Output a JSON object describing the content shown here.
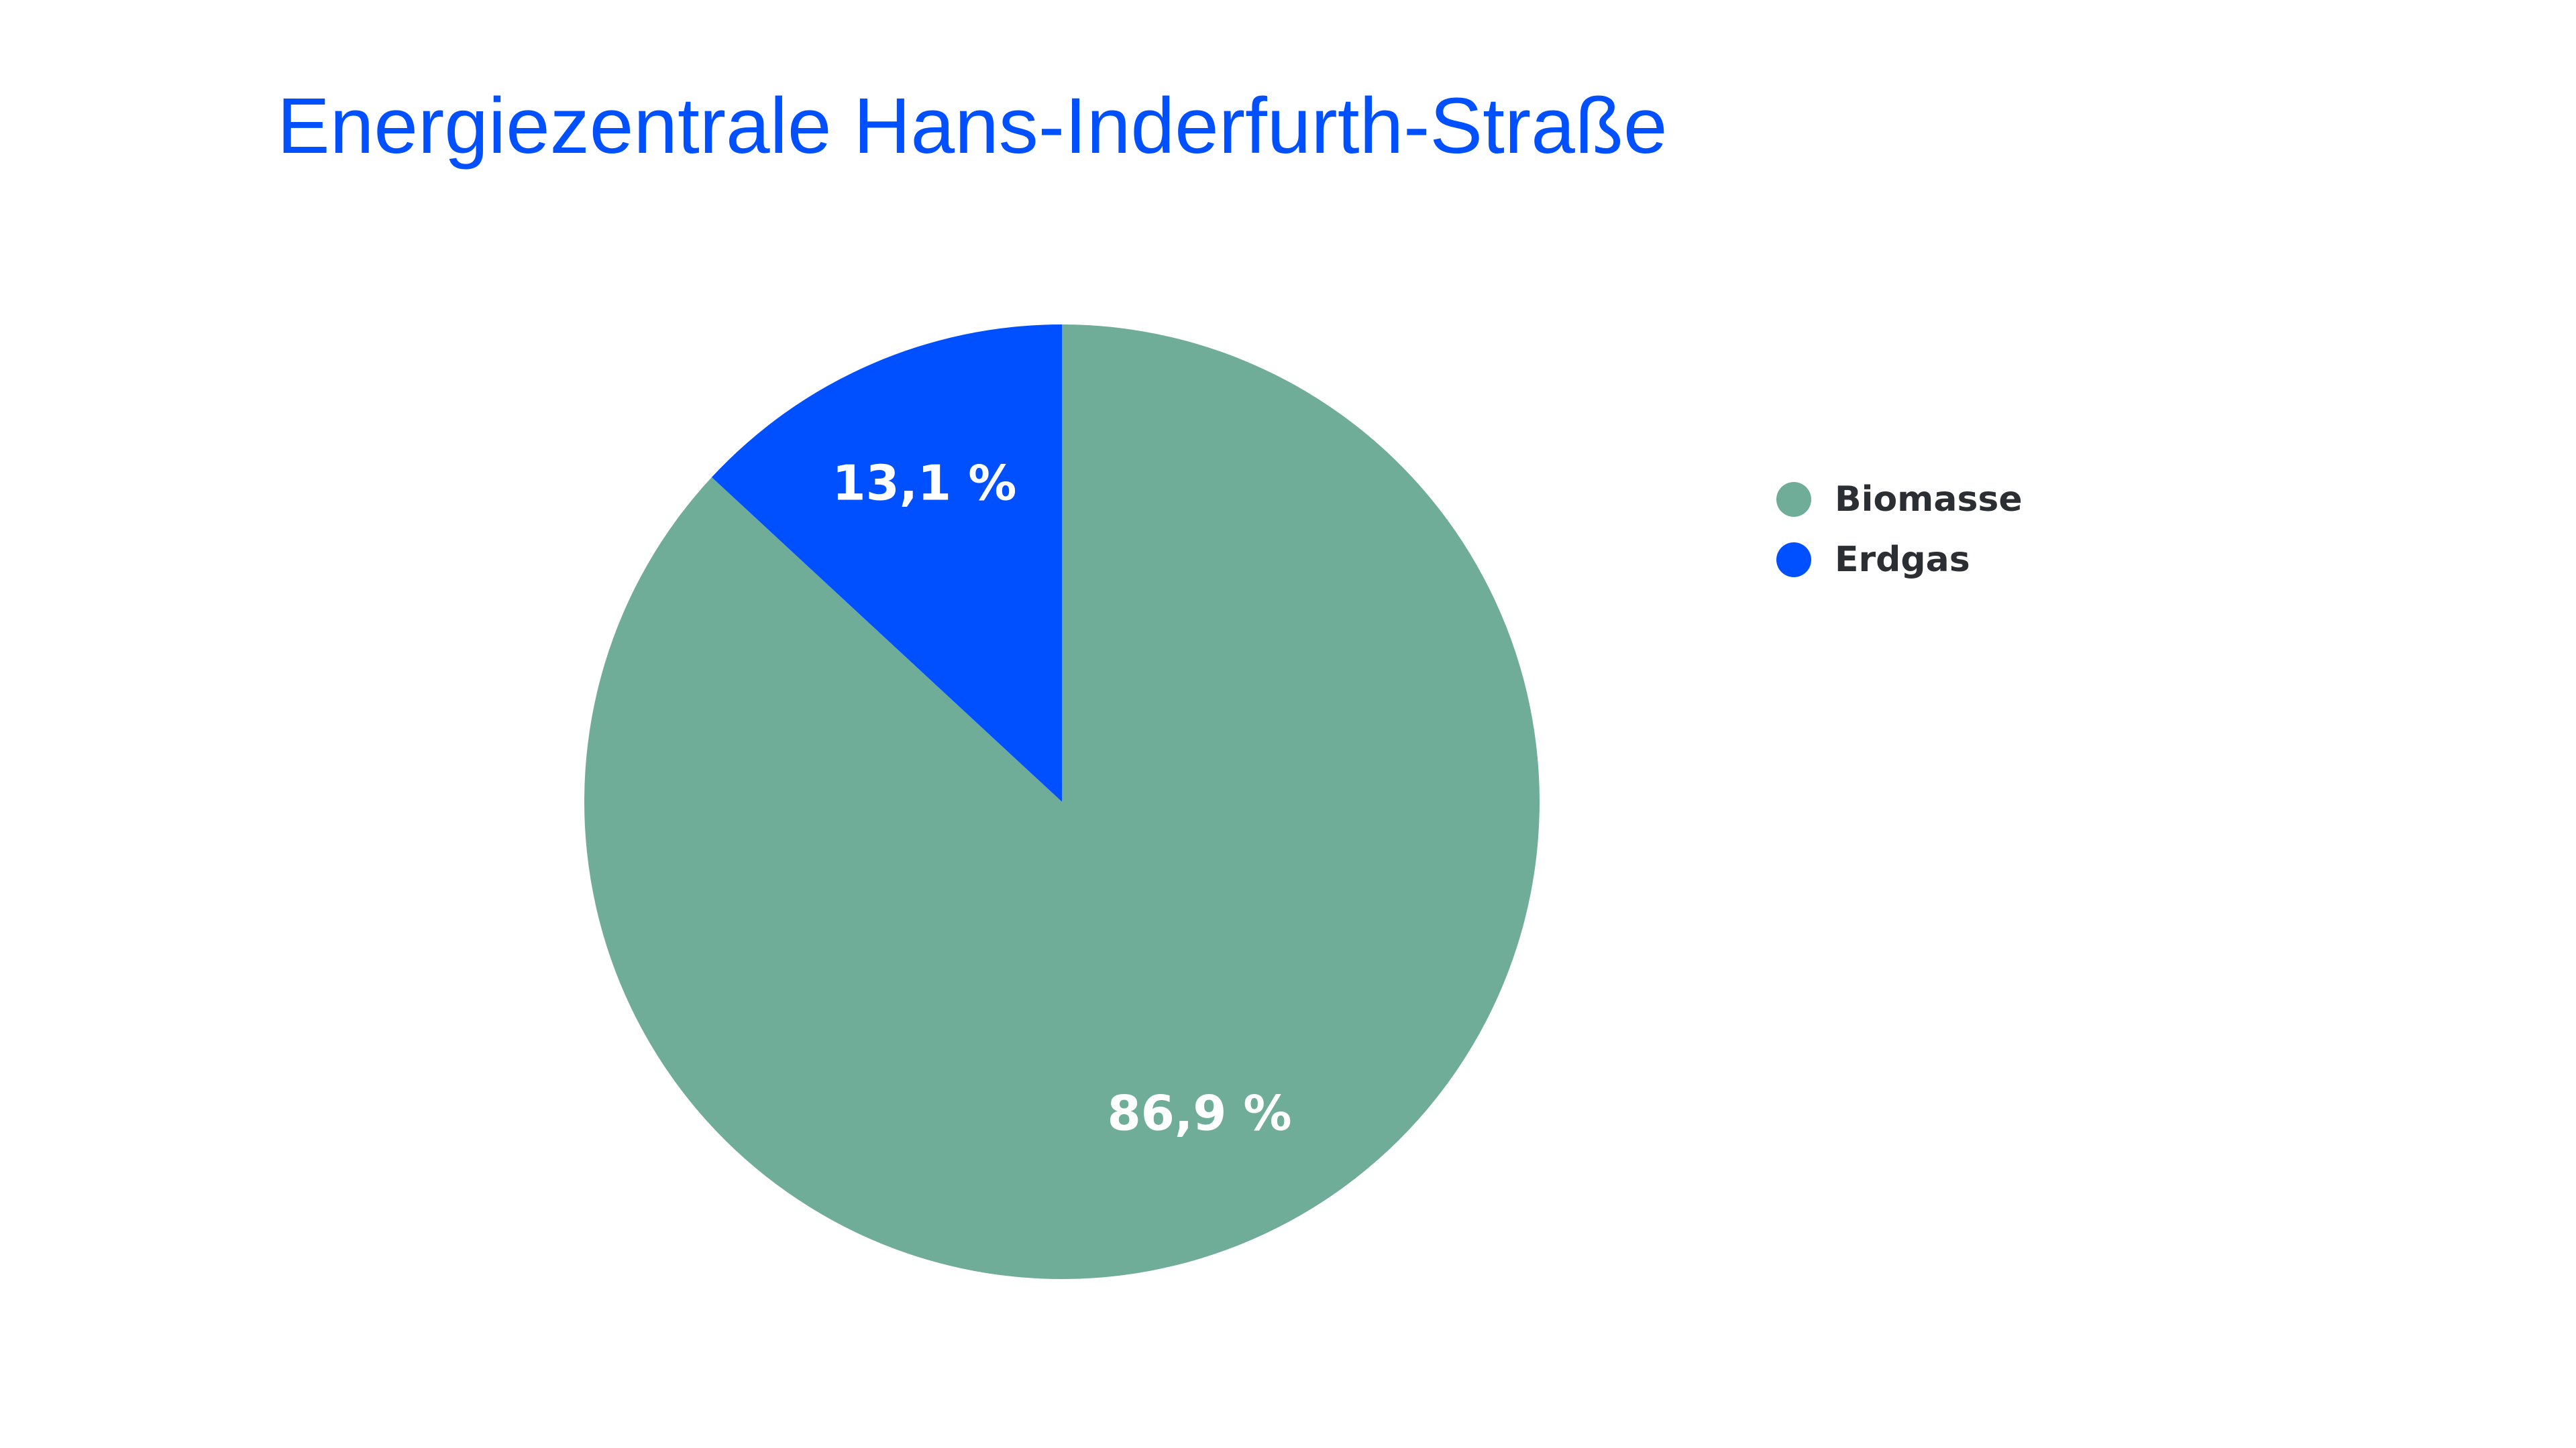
{
  "chart_data": {
    "type": "pie",
    "title": "Energiezentrale Hans-Inderfurth-Straße",
    "title_color": "#0050ff",
    "slices": [
      {
        "label": "Biomasse",
        "value": 86.9,
        "value_label": "86,9 %",
        "color": "#70ad98"
      },
      {
        "label": "Erdgas",
        "value": 13.1,
        "value_label": "13,1 %",
        "color": "#0050ff"
      }
    ],
    "start_angle": "12 o'clock",
    "direction": "clockwise",
    "legend_position": "right"
  }
}
